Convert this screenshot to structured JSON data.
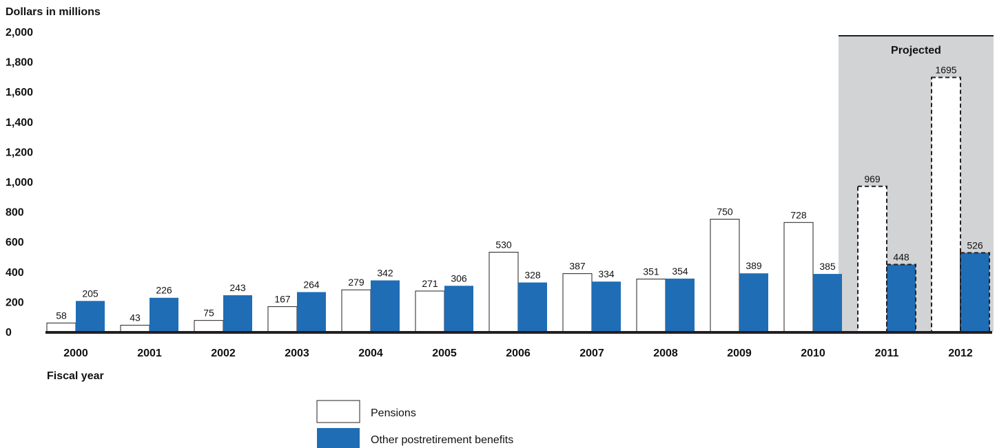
{
  "chart_data": {
    "type": "bar",
    "ylabel": "Dollars in millions",
    "xlabel": "Fiscal year",
    "ylim": [
      0,
      2000
    ],
    "yticks": [
      "0",
      "200",
      "400",
      "600",
      "800",
      "1,000",
      "1,200",
      "1,400",
      "1,600",
      "1,800",
      "2,000"
    ],
    "categories": [
      "2000",
      "2001",
      "2002",
      "2003",
      "2004",
      "2005",
      "2006",
      "2007",
      "2008",
      "2009",
      "2010",
      "2011",
      "2012"
    ],
    "series": [
      {
        "name": "Pensions",
        "values": [
          58,
          43,
          75,
          167,
          279,
          271,
          530,
          387,
          351,
          750,
          728,
          969,
          1695
        ]
      },
      {
        "name": "Other postretirement benefits",
        "values": [
          205,
          226,
          243,
          264,
          342,
          306,
          328,
          334,
          354,
          389,
          385,
          448,
          526
        ]
      }
    ],
    "projected_label": "Projected",
    "projected_categories": [
      "2011",
      "2012"
    ],
    "grid": false,
    "legend_placement": "bottom-center",
    "colors": {
      "pensions": "#ffffff",
      "other": "#1f6db5",
      "projected_band": "#d1d3d4",
      "baseline": "#231f20"
    }
  }
}
